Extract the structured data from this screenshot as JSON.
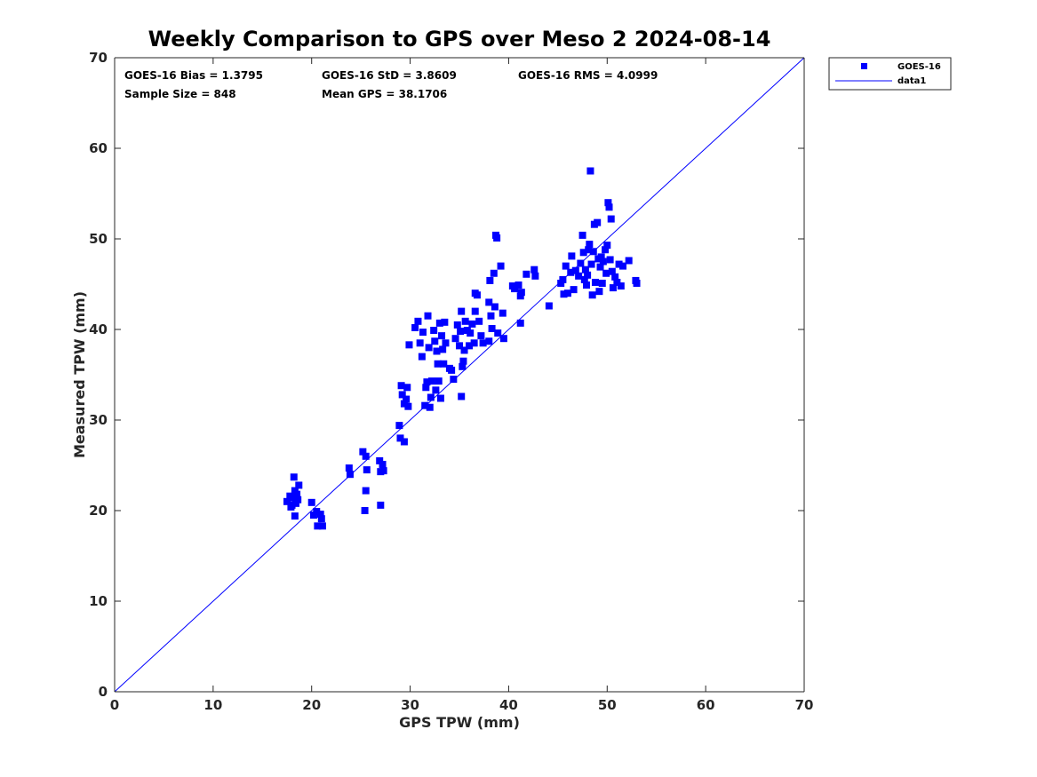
{
  "chart_data": {
    "type": "scatter",
    "title": "Weekly Comparison to GPS over Meso 2 2024-08-14",
    "xlabel": "GPS TPW (mm)",
    "ylabel": "Measured TPW (mm)",
    "xlim": [
      0,
      70
    ],
    "ylim": [
      0,
      70
    ],
    "xticks": [
      0,
      10,
      20,
      30,
      40,
      50,
      60,
      70
    ],
    "yticks": [
      0,
      10,
      20,
      30,
      40,
      50,
      60,
      70
    ],
    "grid": false,
    "legend_position": "outside-top-right",
    "stats": [
      "GOES-16 Bias = 1.3795",
      "GOES-16 StD = 3.8609",
      "GOES-16 RMS = 4.0999",
      "Sample Size = 848",
      "Mean GPS = 38.1706"
    ],
    "series": [
      {
        "name": "GOES-16",
        "type": "scatter",
        "marker": "square",
        "color": "#0000ff",
        "points": [
          [
            17.5,
            21.0
          ],
          [
            17.8,
            21.6
          ],
          [
            18.0,
            20.6
          ],
          [
            18.1,
            21.4
          ],
          [
            18.2,
            23.7
          ],
          [
            18.3,
            22.2
          ],
          [
            18.4,
            20.8
          ],
          [
            18.5,
            21.8
          ],
          [
            18.6,
            21.2
          ],
          [
            18.7,
            22.8
          ],
          [
            18.3,
            19.4
          ],
          [
            17.9,
            20.4
          ],
          [
            20.0,
            20.9
          ],
          [
            20.2,
            19.5
          ],
          [
            20.5,
            19.9
          ],
          [
            20.6,
            18.3
          ],
          [
            20.9,
            19.6
          ],
          [
            21.0,
            19.1
          ],
          [
            21.1,
            18.3
          ],
          [
            23.8,
            24.7
          ],
          [
            23.9,
            24.0
          ],
          [
            25.2,
            26.5
          ],
          [
            25.5,
            26.0
          ],
          [
            25.6,
            24.5
          ],
          [
            25.5,
            22.2
          ],
          [
            25.4,
            20.0
          ],
          [
            26.9,
            25.5
          ],
          [
            27.0,
            24.3
          ],
          [
            27.2,
            25.1
          ],
          [
            27.0,
            20.6
          ],
          [
            27.3,
            24.4
          ],
          [
            28.9,
            29.4
          ],
          [
            29.0,
            28.0
          ],
          [
            29.1,
            33.8
          ],
          [
            29.2,
            32.8
          ],
          [
            29.4,
            31.8
          ],
          [
            29.6,
            32.3
          ],
          [
            29.7,
            33.6
          ],
          [
            29.8,
            31.5
          ],
          [
            29.4,
            27.6
          ],
          [
            29.9,
            38.3
          ],
          [
            30.5,
            40.2
          ],
          [
            30.8,
            40.9
          ],
          [
            31.0,
            38.5
          ],
          [
            31.2,
            37.0
          ],
          [
            31.3,
            39.7
          ],
          [
            31.5,
            31.6
          ],
          [
            31.6,
            33.6
          ],
          [
            31.7,
            34.2
          ],
          [
            31.8,
            41.5
          ],
          [
            31.9,
            38.0
          ],
          [
            32.0,
            31.4
          ],
          [
            32.1,
            32.5
          ],
          [
            32.2,
            34.3
          ],
          [
            32.4,
            39.9
          ],
          [
            32.5,
            38.7
          ],
          [
            32.6,
            33.3
          ],
          [
            32.7,
            37.6
          ],
          [
            32.8,
            36.2
          ],
          [
            32.9,
            34.3
          ],
          [
            33.0,
            40.7
          ],
          [
            33.1,
            32.4
          ],
          [
            33.2,
            39.3
          ],
          [
            33.3,
            37.8
          ],
          [
            33.4,
            36.2
          ],
          [
            33.5,
            40.8
          ],
          [
            33.6,
            38.5
          ],
          [
            34.0,
            35.7
          ],
          [
            34.2,
            35.5
          ],
          [
            34.4,
            34.5
          ],
          [
            34.6,
            39.0
          ],
          [
            34.8,
            40.5
          ],
          [
            35.0,
            38.2
          ],
          [
            35.1,
            39.8
          ],
          [
            35.2,
            32.6
          ],
          [
            35.3,
            35.9
          ],
          [
            35.4,
            36.5
          ],
          [
            35.5,
            37.7
          ],
          [
            35.6,
            40.9
          ],
          [
            35.8,
            39.9
          ],
          [
            35.2,
            42.0
          ],
          [
            36.0,
            38.2
          ],
          [
            36.1,
            39.6
          ],
          [
            36.3,
            40.6
          ],
          [
            36.5,
            38.5
          ],
          [
            36.6,
            42.0
          ],
          [
            36.8,
            43.8
          ],
          [
            37.0,
            40.9
          ],
          [
            37.2,
            39.3
          ],
          [
            37.4,
            38.5
          ],
          [
            36.6,
            44.0
          ],
          [
            38.0,
            43.0
          ],
          [
            38.1,
            45.4
          ],
          [
            38.2,
            41.5
          ],
          [
            38.3,
            40.1
          ],
          [
            38.5,
            46.2
          ],
          [
            38.6,
            42.5
          ],
          [
            38.7,
            50.4
          ],
          [
            38.8,
            50.1
          ],
          [
            38.9,
            39.6
          ],
          [
            39.2,
            47.0
          ],
          [
            39.4,
            41.8
          ],
          [
            39.5,
            39.0
          ],
          [
            38.0,
            38.7
          ],
          [
            40.4,
            44.8
          ],
          [
            40.6,
            44.5
          ],
          [
            41.0,
            44.9
          ],
          [
            41.2,
            43.7
          ],
          [
            41.3,
            44.1
          ],
          [
            41.2,
            40.7
          ],
          [
            41.8,
            46.1
          ],
          [
            42.6,
            46.6
          ],
          [
            42.7,
            45.9
          ],
          [
            44.1,
            42.6
          ],
          [
            45.3,
            45.1
          ],
          [
            45.5,
            45.5
          ],
          [
            45.6,
            43.9
          ],
          [
            45.8,
            47.0
          ],
          [
            46.0,
            44.0
          ],
          [
            46.3,
            46.3
          ],
          [
            46.4,
            48.1
          ],
          [
            46.6,
            44.4
          ],
          [
            46.8,
            46.5
          ],
          [
            47.1,
            45.9
          ],
          [
            47.3,
            47.3
          ],
          [
            47.5,
            50.4
          ],
          [
            47.6,
            48.5
          ],
          [
            47.7,
            45.5
          ],
          [
            47.8,
            46.6
          ],
          [
            47.9,
            44.9
          ],
          [
            48.0,
            46.0
          ],
          [
            48.1,
            48.8
          ],
          [
            48.2,
            49.4
          ],
          [
            48.3,
            57.5
          ],
          [
            48.4,
            47.2
          ],
          [
            48.5,
            43.8
          ],
          [
            48.6,
            48.6
          ],
          [
            48.7,
            51.6
          ],
          [
            48.8,
            45.2
          ],
          [
            49.0,
            51.8
          ],
          [
            49.1,
            47.8
          ],
          [
            49.2,
            44.2
          ],
          [
            49.3,
            46.9
          ],
          [
            49.4,
            48.0
          ],
          [
            49.5,
            45.1
          ],
          [
            49.6,
            47.5
          ],
          [
            49.8,
            48.8
          ],
          [
            49.9,
            46.2
          ],
          [
            50.0,
            49.3
          ],
          [
            50.1,
            54.0
          ],
          [
            50.2,
            53.5
          ],
          [
            50.3,
            47.7
          ],
          [
            50.4,
            52.2
          ],
          [
            50.5,
            46.4
          ],
          [
            50.6,
            44.6
          ],
          [
            50.8,
            45.8
          ],
          [
            51.0,
            45.2
          ],
          [
            51.2,
            47.2
          ],
          [
            51.4,
            44.8
          ],
          [
            51.6,
            47.0
          ],
          [
            52.2,
            47.6
          ],
          [
            52.9,
            45.4
          ],
          [
            53.0,
            45.1
          ]
        ]
      },
      {
        "name": "data1",
        "type": "line",
        "color": "#0000ff",
        "points": [
          [
            0,
            0
          ],
          [
            70,
            70
          ]
        ]
      }
    ]
  }
}
